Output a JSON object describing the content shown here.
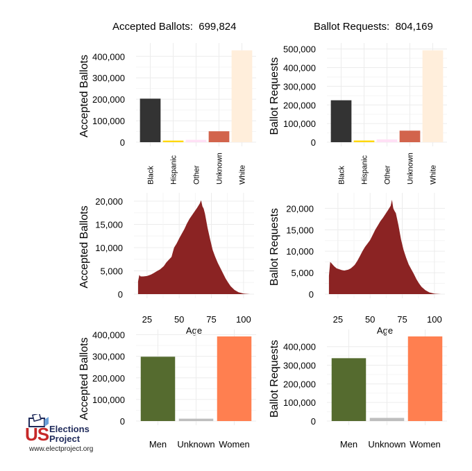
{
  "headers": {
    "left": {
      "label": "Accepted Ballots:",
      "value": "699,824"
    },
    "right": {
      "label": "Ballot Requests:",
      "value": "804,169"
    }
  },
  "logo": {
    "us": "US",
    "line1": "Elections",
    "line2": "Project",
    "url": "www.electproject.org"
  },
  "colors": {
    "Black": "#333333",
    "Hispanic": "#FFD700",
    "Other": "#FFE0F5",
    "Unknown_race": "#D2644C",
    "White": "#FFEEDB",
    "age": "#8B2323",
    "Men": "#556B2F",
    "Unknown_gender": "#BEBEBE",
    "Women": "#FF7F50"
  },
  "chart_data": [
    {
      "id": "race-accepted",
      "type": "bar",
      "ylabel": "Accepted Ballots",
      "xlabel": "",
      "categories": [
        "Black",
        "Hispanic",
        "Other",
        "Unknown",
        "White"
      ],
      "values": [
        203000,
        7500,
        11000,
        51000,
        428000
      ],
      "ylim": [
        0,
        430000
      ],
      "yticks": [
        0,
        100000,
        200000,
        300000,
        400000
      ],
      "ytick_labels": [
        "0",
        "100,000",
        "200,000",
        "300,000",
        "400,000"
      ]
    },
    {
      "id": "race-requests",
      "type": "bar",
      "ylabel": "Ballot Requests",
      "xlabel": "",
      "categories": [
        "Black",
        "Hispanic",
        "Other",
        "Unknown",
        "White"
      ],
      "values": [
        225000,
        9000,
        15000,
        62000,
        493000
      ],
      "ylim": [
        0,
        495000
      ],
      "yticks": [
        0,
        100000,
        200000,
        300000,
        400000,
        500000
      ],
      "ytick_labels": [
        "0",
        "100,000",
        "200,000",
        "300,000",
        "400,000",
        "500,000"
      ]
    },
    {
      "id": "age-accepted",
      "type": "area",
      "ylabel": "Accepted Ballots",
      "xlabel": "Age",
      "x_points": [
        18,
        19,
        20,
        22,
        25,
        28,
        30,
        33,
        35,
        38,
        40,
        42,
        44,
        45,
        46,
        48,
        50,
        52,
        54,
        56,
        58,
        60,
        62,
        64,
        66,
        67,
        68,
        69,
        70,
        72,
        74,
        76,
        78,
        80,
        82,
        84,
        86,
        88,
        90,
        93,
        96,
        100,
        105
      ],
      "y_points": [
        2700,
        4100,
        3800,
        3800,
        3900,
        4200,
        4500,
        5000,
        5300,
        6000,
        6800,
        7400,
        8000,
        9000,
        10000,
        10900,
        12000,
        13000,
        14000,
        15200,
        16200,
        17000,
        17800,
        18600,
        19500,
        20200,
        18900,
        18400,
        17300,
        14300,
        11800,
        9500,
        8000,
        6700,
        5600,
        4500,
        3400,
        2500,
        1700,
        900,
        400,
        100,
        0
      ],
      "xlim": [
        17,
        106
      ],
      "ylim": [
        0,
        20300
      ],
      "xticks": [
        25,
        50,
        75,
        100
      ],
      "yticks": [
        0,
        5000,
        10000,
        15000,
        20000
      ],
      "ytick_labels": [
        "0",
        "5,000",
        "10,000",
        "15,000",
        "20,000"
      ]
    },
    {
      "id": "age-requests",
      "type": "area",
      "ylabel": "Ballot Requests",
      "xlabel": "Age",
      "x_points": [
        18,
        19,
        20,
        22,
        24,
        26,
        28,
        30,
        33,
        35,
        38,
        40,
        42,
        44,
        46,
        48,
        50,
        52,
        54,
        56,
        58,
        60,
        62,
        64,
        66,
        67,
        68,
        69,
        70,
        72,
        74,
        76,
        78,
        80,
        82,
        84,
        86,
        88,
        90,
        93,
        96,
        100,
        105
      ],
      "y_points": [
        4300,
        7500,
        7200,
        6500,
        6000,
        5800,
        5600,
        5500,
        5700,
        6000,
        6800,
        7700,
        8800,
        10000,
        11000,
        11800,
        12600,
        13800,
        15000,
        16000,
        17000,
        17800,
        18700,
        19600,
        20600,
        22000,
        20000,
        19400,
        18900,
        16100,
        12800,
        10300,
        8500,
        6900,
        5800,
        4700,
        3500,
        2500,
        1700,
        900,
        400,
        100,
        0
      ],
      "xlim": [
        17,
        106
      ],
      "ylim": [
        0,
        22000
      ],
      "xticks": [
        25,
        50,
        75,
        100
      ],
      "yticks": [
        0,
        5000,
        10000,
        15000,
        20000
      ],
      "ytick_labels": [
        "0",
        "5,000",
        "10,000",
        "15,000",
        "20,000"
      ]
    },
    {
      "id": "gender-accepted",
      "type": "bar",
      "ylabel": "Accepted Ballots",
      "xlabel": "",
      "categories": [
        "Men",
        "Unknown",
        "Women"
      ],
      "values": [
        298000,
        11000,
        392000
      ],
      "ylim": [
        0,
        392000
      ],
      "yticks": [
        0,
        100000,
        200000,
        300000,
        400000
      ],
      "ytick_labels": [
        "0",
        "100,000",
        "200,000",
        "300,000",
        "400,000"
      ]
    },
    {
      "id": "gender-requests",
      "type": "bar",
      "ylabel": "Ballot Requests",
      "xlabel": "",
      "categories": [
        "Men",
        "Unknown",
        "Women"
      ],
      "values": [
        338000,
        17000,
        455000
      ],
      "ylim": [
        0,
        455000
      ],
      "yticks": [
        0,
        100000,
        200000,
        300000,
        400000
      ],
      "ytick_labels": [
        "0",
        "100,000",
        "200,000",
        "300,000",
        "400,000"
      ]
    }
  ]
}
